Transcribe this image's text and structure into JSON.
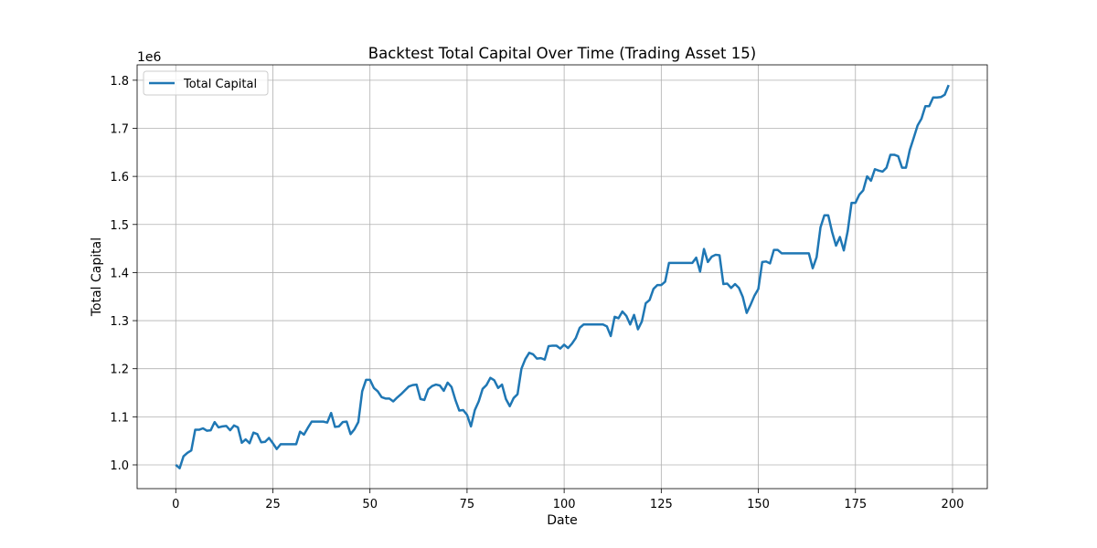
{
  "chart_data": {
    "type": "line",
    "title": "Backtest Total Capital Over Time (Trading Asset 15)",
    "x_label": "Date",
    "y_label": "Total Capital",
    "y_offset_text": "1e6",
    "x": [
      0,
      1,
      2,
      3,
      4,
      5,
      6,
      7,
      8,
      9,
      10,
      11,
      12,
      13,
      14,
      15,
      16,
      17,
      18,
      19,
      20,
      21,
      22,
      23,
      24,
      25,
      26,
      27,
      28,
      29,
      30,
      31,
      32,
      33,
      34,
      35,
      36,
      37,
      38,
      39,
      40,
      41,
      42,
      43,
      44,
      45,
      46,
      47,
      48,
      49,
      50,
      51,
      52,
      53,
      54,
      55,
      56,
      57,
      58,
      59,
      60,
      61,
      62,
      63,
      64,
      65,
      66,
      67,
      68,
      69,
      70,
      71,
      72,
      73,
      74,
      75,
      76,
      77,
      78,
      79,
      80,
      81,
      82,
      83,
      84,
      85,
      86,
      87,
      88,
      89,
      90,
      91,
      92,
      93,
      94,
      95,
      96,
      97,
      98,
      99,
      100,
      101,
      102,
      103,
      104,
      105,
      106,
      107,
      108,
      109,
      110,
      111,
      112,
      113,
      114,
      115,
      116,
      117,
      118,
      119,
      120,
      121,
      122,
      123,
      124,
      125,
      126,
      127,
      128,
      129,
      130,
      131,
      132,
      133,
      134,
      135,
      136,
      137,
      138,
      139,
      140,
      141,
      142,
      143,
      144,
      145,
      146,
      147,
      148,
      149,
      150,
      151,
      152,
      153,
      154,
      155,
      156,
      157,
      158,
      159,
      160,
      161,
      162,
      163,
      164,
      165,
      166,
      167,
      168,
      169,
      170,
      171,
      172,
      173,
      174,
      175,
      176,
      177,
      178,
      179,
      180,
      181,
      182,
      183,
      184,
      185,
      186,
      187,
      188,
      189,
      190,
      191,
      192,
      193,
      194,
      195,
      196,
      197,
      198,
      199
    ],
    "series": [
      {
        "name": "Total Capital",
        "color": "#1f77b4",
        "values": [
          1.0,
          0.993,
          1.018,
          1.025,
          1.03,
          1.073,
          1.073,
          1.076,
          1.071,
          1.072,
          1.089,
          1.078,
          1.08,
          1.081,
          1.072,
          1.082,
          1.078,
          1.046,
          1.053,
          1.045,
          1.067,
          1.064,
          1.047,
          1.048,
          1.056,
          1.045,
          1.033,
          1.043,
          1.043,
          1.043,
          1.043,
          1.043,
          1.069,
          1.063,
          1.077,
          1.09,
          1.09,
          1.09,
          1.09,
          1.088,
          1.108,
          1.079,
          1.08,
          1.089,
          1.09,
          1.064,
          1.074,
          1.089,
          1.153,
          1.177,
          1.177,
          1.16,
          1.153,
          1.141,
          1.138,
          1.138,
          1.132,
          1.14,
          1.147,
          1.155,
          1.163,
          1.166,
          1.167,
          1.137,
          1.135,
          1.157,
          1.164,
          1.167,
          1.165,
          1.154,
          1.171,
          1.162,
          1.135,
          1.113,
          1.114,
          1.104,
          1.08,
          1.114,
          1.132,
          1.158,
          1.166,
          1.181,
          1.176,
          1.16,
          1.167,
          1.137,
          1.122,
          1.139,
          1.147,
          1.2,
          1.22,
          1.233,
          1.23,
          1.221,
          1.222,
          1.219,
          1.247,
          1.248,
          1.248,
          1.242,
          1.25,
          1.243,
          1.252,
          1.264,
          1.285,
          1.292,
          1.292,
          1.292,
          1.292,
          1.292,
          1.292,
          1.288,
          1.268,
          1.308,
          1.305,
          1.319,
          1.31,
          1.292,
          1.312,
          1.282,
          1.298,
          1.336,
          1.343,
          1.366,
          1.374,
          1.374,
          1.381,
          1.42,
          1.42,
          1.42,
          1.42,
          1.42,
          1.42,
          1.42,
          1.431,
          1.402,
          1.449,
          1.422,
          1.433,
          1.437,
          1.436,
          1.376,
          1.377,
          1.368,
          1.376,
          1.368,
          1.349,
          1.316,
          1.333,
          1.352,
          1.366,
          1.422,
          1.423,
          1.419,
          1.447,
          1.447,
          1.44,
          1.44,
          1.44,
          1.44,
          1.44,
          1.44,
          1.44,
          1.44,
          1.409,
          1.432,
          1.494,
          1.519,
          1.519,
          1.484,
          1.456,
          1.474,
          1.446,
          1.486,
          1.545,
          1.545,
          1.562,
          1.571,
          1.6,
          1.591,
          1.615,
          1.612,
          1.61,
          1.618,
          1.645,
          1.645,
          1.642,
          1.618,
          1.618,
          1.655,
          1.68,
          1.706,
          1.72,
          1.746,
          1.746,
          1.764,
          1.764,
          1.765,
          1.77,
          1.79
        ]
      }
    ],
    "xlim": [
      -9.95,
      208.95
    ],
    "ylim": [
      0.9506,
      1.832
    ],
    "xticks": [
      0,
      25,
      50,
      75,
      100,
      125,
      150,
      175,
      200
    ],
    "yticks": [
      {
        "value": 1,
        "label": "1.0"
      },
      1.1,
      1.2,
      1.3,
      1.4,
      1.5,
      1.6,
      1.7,
      1.8
    ],
    "grid": true,
    "legend": "upper left"
  }
}
